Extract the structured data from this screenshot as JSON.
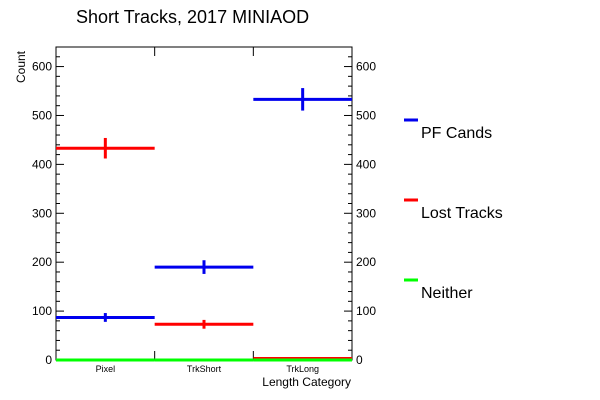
{
  "chart_data": {
    "type": "histogram",
    "title": "Short Tracks, 2017 MINIAOD",
    "xlabel": "Length Category",
    "ylabel": "Count",
    "categories": [
      "Pixel",
      "TrkShort",
      "TrkLong"
    ],
    "ylim": [
      0,
      640
    ],
    "yticks": [
      0,
      100,
      200,
      300,
      400,
      500,
      600
    ],
    "series": [
      {
        "name": "PF Cands",
        "color": "#0000ee",
        "values": [
          87,
          190,
          533
        ],
        "errors": [
          9,
          14,
          23
        ]
      },
      {
        "name": "Lost Tracks",
        "color": "#ff0000",
        "values": [
          433,
          73,
          3
        ],
        "errors": [
          21,
          9,
          2
        ]
      },
      {
        "name": "Neither",
        "color": "#00ff00",
        "values": [
          0,
          0,
          0
        ],
        "errors": [
          0,
          0,
          0
        ]
      }
    ],
    "legend_position": "right",
    "grid": false
  }
}
